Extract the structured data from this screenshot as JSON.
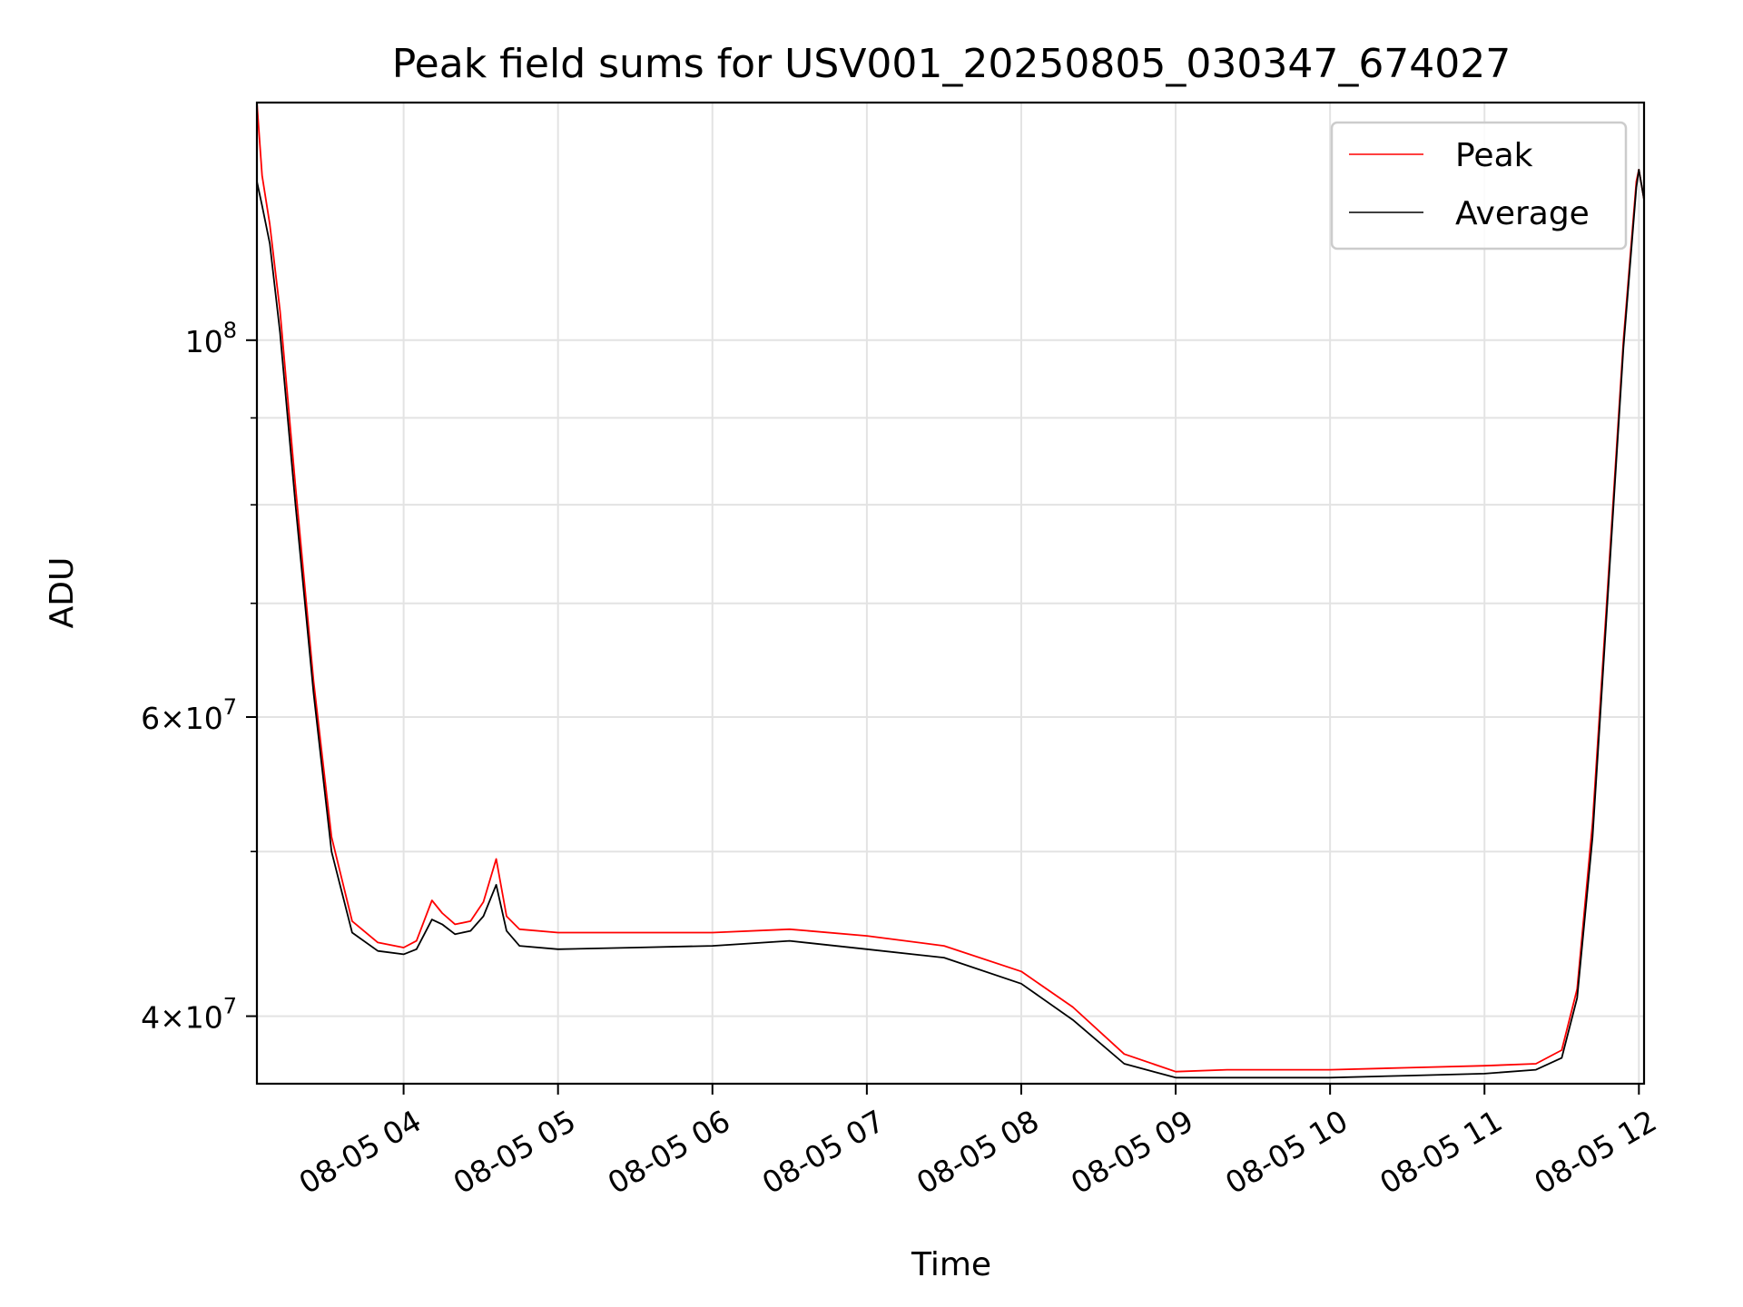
{
  "chart_data": {
    "type": "line",
    "title": "Peak field sums for USV001_20250805_030347_674027",
    "xlabel": "Time",
    "ylabel": "ADU",
    "yscale": "log",
    "grid": true,
    "legend_position": "top-right",
    "xlim": [
      "08-05 03:03",
      "08-05 12:02"
    ],
    "ylim": [
      36500000,
      138000000
    ],
    "x_ticks": [
      {
        "value": "08-05 04:00",
        "label": "08-05 04"
      },
      {
        "value": "08-05 05:00",
        "label": "08-05 05"
      },
      {
        "value": "08-05 06:00",
        "label": "08-05 06"
      },
      {
        "value": "08-05 07:00",
        "label": "08-05 07"
      },
      {
        "value": "08-05 08:00",
        "label": "08-05 08"
      },
      {
        "value": "08-05 09:00",
        "label": "08-05 09"
      },
      {
        "value": "08-05 10:00",
        "label": "08-05 10"
      },
      {
        "value": "08-05 11:00",
        "label": "08-05 11"
      },
      {
        "value": "08-05 12:00",
        "label": "08-05 12"
      }
    ],
    "y_ticks": [
      {
        "value": 40000000,
        "mantissa": "4",
        "exponent": "7"
      },
      {
        "value": 60000000,
        "mantissa": "6",
        "exponent": "7"
      },
      {
        "value": 100000000,
        "mantissa": "",
        "exponent": "8"
      }
    ],
    "y_minor_ticks": [
      50000000,
      70000000,
      80000000,
      90000000
    ],
    "series": [
      {
        "name": "Peak",
        "color": "#ff0000",
        "x": [
          "08-05 03:03",
          "08-05 03:05",
          "08-05 03:08",
          "08-05 03:12",
          "08-05 03:18",
          "08-05 03:25",
          "08-05 03:32",
          "08-05 03:40",
          "08-05 03:50",
          "08-05 04:00",
          "08-05 04:05",
          "08-05 04:11",
          "08-05 04:15",
          "08-05 04:20",
          "08-05 04:26",
          "08-05 04:31",
          "08-05 04:36",
          "08-05 04:40",
          "08-05 04:45",
          "08-05 05:00",
          "08-05 05:30",
          "08-05 06:00",
          "08-05 06:30",
          "08-05 07:00",
          "08-05 07:30",
          "08-05 08:00",
          "08-05 08:20",
          "08-05 08:40",
          "08-05 09:00",
          "08-05 09:20",
          "08-05 09:40",
          "08-05 10:00",
          "08-05 10:30",
          "08-05 11:00",
          "08-05 11:20",
          "08-05 11:30",
          "08-05 11:36",
          "08-05 11:42",
          "08-05 11:48",
          "08-05 11:54",
          "08-05 11:59",
          "08-05 12:00",
          "08-05 12:02"
        ],
        "y": [
          138000000,
          125000000,
          117000000,
          104000000,
          82000000,
          63000000,
          51000000,
          45500000,
          44200000,
          43900000,
          44300000,
          46800000,
          46000000,
          45300000,
          45500000,
          46700000,
          49500000,
          45800000,
          45000000,
          44800000,
          44800000,
          44800000,
          45000000,
          44600000,
          44000000,
          42500000,
          40500000,
          38000000,
          37100000,
          37200000,
          37200000,
          37200000,
          37300000,
          37400000,
          37500000,
          38200000,
          41500000,
          52000000,
          72000000,
          100000000,
          124000000,
          126000000,
          121000000
        ]
      },
      {
        "name": "Average",
        "color": "#000000",
        "x": [
          "08-05 03:03",
          "08-05 03:05",
          "08-05 03:08",
          "08-05 03:12",
          "08-05 03:18",
          "08-05 03:25",
          "08-05 03:32",
          "08-05 03:40",
          "08-05 03:50",
          "08-05 04:00",
          "08-05 04:05",
          "08-05 04:11",
          "08-05 04:15",
          "08-05 04:20",
          "08-05 04:26",
          "08-05 04:31",
          "08-05 04:36",
          "08-05 04:40",
          "08-05 04:45",
          "08-05 05:00",
          "08-05 05:30",
          "08-05 06:00",
          "08-05 06:30",
          "08-05 07:00",
          "08-05 07:30",
          "08-05 08:00",
          "08-05 08:20",
          "08-05 08:40",
          "08-05 09:00",
          "08-05 09:20",
          "08-05 09:40",
          "08-05 10:00",
          "08-05 10:30",
          "08-05 11:00",
          "08-05 11:20",
          "08-05 11:30",
          "08-05 11:36",
          "08-05 11:42",
          "08-05 11:48",
          "08-05 11:54",
          "08-05 11:59",
          "08-05 12:00",
          "08-05 12:02"
        ],
        "y": [
          124000000,
          120000000,
          114000000,
          101000000,
          80000000,
          62000000,
          50000000,
          44800000,
          43700000,
          43500000,
          43800000,
          45600000,
          45300000,
          44700000,
          44900000,
          45800000,
          47800000,
          44900000,
          44000000,
          43800000,
          43900000,
          44000000,
          44300000,
          43800000,
          43300000,
          41800000,
          39800000,
          37500000,
          36800000,
          36800000,
          36800000,
          36800000,
          36900000,
          37000000,
          37200000,
          37800000,
          41000000,
          51000000,
          71000000,
          99000000,
          123000000,
          126000000,
          121000000
        ]
      }
    ]
  }
}
